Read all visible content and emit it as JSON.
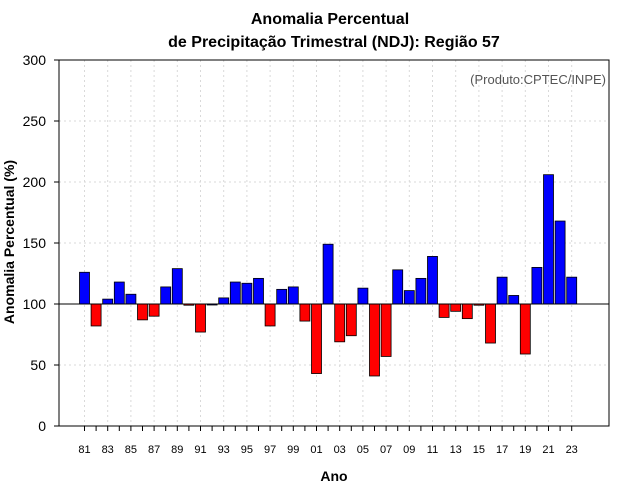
{
  "chart_data": {
    "type": "bar",
    "title": "Anomalia Percentual",
    "subtitle": "de Precipitação Trimestral (NDJ): Região 57",
    "xlabel": "Ano",
    "ylabel": "Anomalia Percentual (%)",
    "annotation": "(Produto:CPTEC/INPE)",
    "ylim": [
      0,
      300
    ],
    "yticks": [
      0,
      50,
      100,
      150,
      200,
      250,
      300
    ],
    "baseline": 100,
    "categories": [
      "81",
      "82",
      "83",
      "84",
      "85",
      "86",
      "87",
      "88",
      "89",
      "90",
      "91",
      "92",
      "93",
      "94",
      "95",
      "96",
      "97",
      "98",
      "99",
      "00",
      "01",
      "02",
      "03",
      "04",
      "05",
      "06",
      "07",
      "08",
      "09",
      "10",
      "11",
      "12",
      "13",
      "14",
      "15",
      "16",
      "17",
      "18",
      "19",
      "20",
      "21",
      "22",
      "23"
    ],
    "xtick_labels": [
      "81",
      "83",
      "85",
      "87",
      "89",
      "91",
      "93",
      "95",
      "97",
      "99",
      "01",
      "03",
      "05",
      "07",
      "09",
      "11",
      "13",
      "15",
      "17",
      "19",
      "21",
      "23"
    ],
    "values": [
      126,
      82,
      104,
      118,
      108,
      87,
      90,
      114,
      129,
      99,
      77,
      100,
      105,
      118,
      117,
      121,
      82,
      112,
      114,
      86,
      43,
      149,
      69,
      74,
      113,
      41,
      57,
      128,
      111,
      121,
      139,
      89,
      94,
      88,
      99,
      68,
      122,
      107,
      59,
      130,
      206,
      168,
      122
    ],
    "colors": {
      "above": "#0000ff",
      "below": "#ff0000",
      "edge": "#000000"
    },
    "grid": true
  }
}
